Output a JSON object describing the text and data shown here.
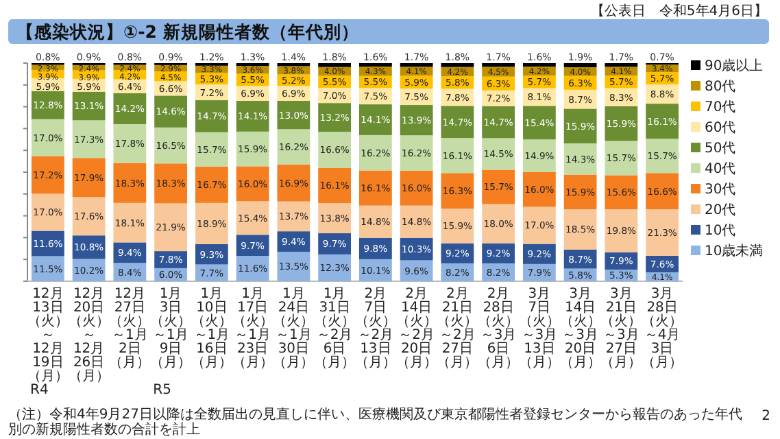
{
  "chart_data": {
    "type": "bar",
    "stacked": true,
    "title": "【感染状況】①-2 新規陽性者数（年代別）",
    "subtitle": "【公表日　令和5年4月6日】",
    "categories": [
      "12月13日（火）～12月19日（月）",
      "12月20日（火）～12月26日（月）",
      "12月27日（火）～1月2日（月）",
      "1月3日（火）～1月9日（月）",
      "1月10日（火）～1月16日（月）",
      "1月17日（火）～1月23日（月）",
      "1月24日（火）～1月30日（月）",
      "1月31日（火）～2月6日（月）",
      "2月7日（火）～2月13日（月）",
      "2月14日（火）～2月20日（月）",
      "2月21日（火）～2月27日（月）",
      "2月28日（火）～3月6日（月）",
      "3月7日（火）～3月13日（月）",
      "3月14日（火）～3月20日（月）",
      "3月21日（火）～3月27日（月）",
      "3月28日（火）～4月3日（月）"
    ],
    "ylim": [
      0,
      100
    ],
    "yticks": [
      {
        "value": 0,
        "label": null
      },
      {
        "value": 10,
        "label": null
      },
      {
        "value": 20,
        "label": null
      },
      {
        "value": 30,
        "label": null
      },
      {
        "value": 40,
        "label": null
      },
      {
        "value": 50,
        "label": null
      },
      {
        "value": 60,
        "label": null
      },
      {
        "value": 70,
        "label": null
      },
      {
        "value": 80,
        "label": null
      },
      {
        "value": 90,
        "label": null
      },
      {
        "value": 100,
        "label": null
      }
    ],
    "legend": "right",
    "series": [
      {
        "name": "10歳未満",
        "color": "#8fb4e3",
        "values": [
          11.5,
          10.2,
          8.4,
          6.0,
          7.7,
          11.6,
          13.5,
          12.3,
          10.1,
          9.6,
          8.2,
          8.2,
          7.9,
          5.8,
          5.3,
          4.1
        ],
        "value_labels": [
          "11.5%",
          "10.2%",
          "8.4%",
          "6.0%",
          "7.7%",
          "11.6%",
          "13.5%",
          "12.3%",
          "10.1%",
          "9.6%",
          "8.2%",
          "8.2%",
          "7.9%",
          "5.8%",
          "5.3%",
          "4.1%"
        ]
      },
      {
        "name": "10代",
        "color": "#2f5597",
        "values": [
          11.6,
          10.8,
          9.4,
          7.8,
          9.3,
          9.7,
          9.4,
          9.7,
          9.8,
          10.3,
          9.2,
          9.2,
          9.2,
          8.7,
          7.9,
          7.6
        ],
        "value_labels": [
          "11.6%",
          "10.8%",
          "9.4%",
          "7.8%",
          "9.3%",
          "9.7%",
          "9.4%",
          "9.7%",
          "9.8%",
          "10.3%",
          "9.2%",
          "9.2%",
          "9.2%",
          "8.7%",
          "7.9%",
          "7.6%"
        ]
      },
      {
        "name": "20代",
        "color": "#f8c89b",
        "values": [
          17.0,
          17.6,
          18.1,
          21.9,
          18.9,
          15.4,
          13.7,
          13.8,
          14.8,
          14.8,
          15.9,
          18.0,
          17.0,
          18.5,
          19.8,
          21.3
        ],
        "value_labels": [
          "17.0%",
          "17.6%",
          "18.1%",
          "21.9%",
          "18.9%",
          "15.4%",
          "13.7%",
          "13.8%",
          "14.8%",
          "14.8%",
          "15.9%",
          "18.0%",
          "17.0%",
          "18.5%",
          "19.8%",
          "21.3%"
        ]
      },
      {
        "name": "30代",
        "color": "#f47e20",
        "values": [
          17.2,
          17.9,
          18.3,
          18.3,
          16.7,
          16.0,
          16.9,
          16.1,
          16.1,
          16.0,
          16.3,
          15.7,
          16.0,
          15.9,
          15.6,
          16.6
        ],
        "value_labels": [
          "17.2%",
          "17.9%",
          "18.3%",
          "18.3%",
          "16.7%",
          "16.0%",
          "16.9%",
          "16.1%",
          "16.1%",
          "16.0%",
          "16.3%",
          "15.7%",
          "16.0%",
          "15.9%",
          "15.6%",
          "16.6%"
        ]
      },
      {
        "name": "40代",
        "color": "#c5dca6",
        "values": [
          17.0,
          17.3,
          17.8,
          16.5,
          15.7,
          15.9,
          16.2,
          16.6,
          16.2,
          16.2,
          16.1,
          14.5,
          14.9,
          14.3,
          15.7,
          15.7
        ],
        "value_labels": [
          "17.0%",
          "17.3%",
          "17.8%",
          "16.5%",
          "15.7%",
          "15.9%",
          "16.2%",
          "16.6%",
          "16.2%",
          "16.2%",
          "16.1%",
          "14.5%",
          "14.9%",
          "14.3%",
          "15.7%",
          "15.7%"
        ]
      },
      {
        "name": "50代",
        "color": "#6b8e33",
        "values": [
          12.8,
          13.1,
          14.2,
          14.6,
          14.7,
          14.1,
          13.0,
          13.2,
          14.1,
          13.9,
          14.7,
          14.7,
          15.4,
          15.9,
          15.9,
          16.1
        ],
        "value_labels": [
          "12.8%",
          "13.1%",
          "14.2%",
          "14.6%",
          "14.7%",
          "14.1%",
          "13.0%",
          "13.2%",
          "14.1%",
          "13.9%",
          "14.7%",
          "14.7%",
          "15.4%",
          "15.9%",
          "15.9%",
          "16.1%"
        ]
      },
      {
        "name": "60代",
        "color": "#ffe8a5",
        "values": [
          5.9,
          5.9,
          6.4,
          6.6,
          7.2,
          6.9,
          6.9,
          7.0,
          7.5,
          7.5,
          7.8,
          7.2,
          8.1,
          8.7,
          8.3,
          8.8
        ],
        "value_labels": [
          "5.9%",
          "5.9%",
          "6.4%",
          "6.6%",
          "7.2%",
          "6.9%",
          "6.9%",
          "7.0%",
          "7.5%",
          "7.5%",
          "7.8%",
          "7.2%",
          "8.1%",
          "8.7%",
          "8.3%",
          "8.8%"
        ]
      },
      {
        "name": "70代",
        "color": "#ffc000",
        "values": [
          3.9,
          3.9,
          4.2,
          4.5,
          5.3,
          5.5,
          5.2,
          5.5,
          5.5,
          5.9,
          5.8,
          6.3,
          5.7,
          6.3,
          5.7,
          5.7
        ],
        "value_labels": [
          "3.9%",
          "3.9%",
          "4.2%",
          "4.5%",
          "5.3%",
          "5.5%",
          "5.2%",
          "5.5%",
          "5.5%",
          "5.9%",
          "5.8%",
          "6.3%",
          "5.7%",
          "6.3%",
          "5.7%",
          "5.7%"
        ]
      },
      {
        "name": "80代",
        "color": "#c09000",
        "values": [
          2.3,
          2.4,
          2.4,
          2.9,
          3.3,
          3.6,
          3.8,
          4.0,
          4.3,
          4.1,
          4.2,
          4.5,
          4.2,
          4.0,
          4.1,
          3.4
        ],
        "value_labels": [
          "2.3%",
          "2.4%",
          "2.4%",
          "2.9%",
          "3.3%",
          "3.6%",
          "3.8%",
          "4.0%",
          "4.3%",
          "4.1%",
          "4.2%",
          "4.5%",
          "4.2%",
          "4.0%",
          "4.1%",
          "3.4%"
        ]
      },
      {
        "name": "90歳以上",
        "color": "#000000",
        "values": [
          0.8,
          0.9,
          0.8,
          0.9,
          1.2,
          1.3,
          1.4,
          1.8,
          1.6,
          1.7,
          1.8,
          1.7,
          1.6,
          1.9,
          1.7,
          0.7
        ],
        "value_labels": [
          "0.8%",
          "0.9%",
          "0.8%",
          "0.9%",
          "1.2%",
          "1.3%",
          "1.4%",
          "1.8%",
          "1.6%",
          "1.7%",
          "1.8%",
          "1.7%",
          "1.6%",
          "1.9%",
          "1.7%",
          "0.7%"
        ]
      }
    ],
    "annotations": [
      "R4",
      "R5",
      "（注）令和4年9月27日以降は全数届出の見直しに伴い、医療機関及び東京都陽性者登録センターから報告のあった年代別の新規陽性者数の合計を計上",
      "2"
    ]
  }
}
